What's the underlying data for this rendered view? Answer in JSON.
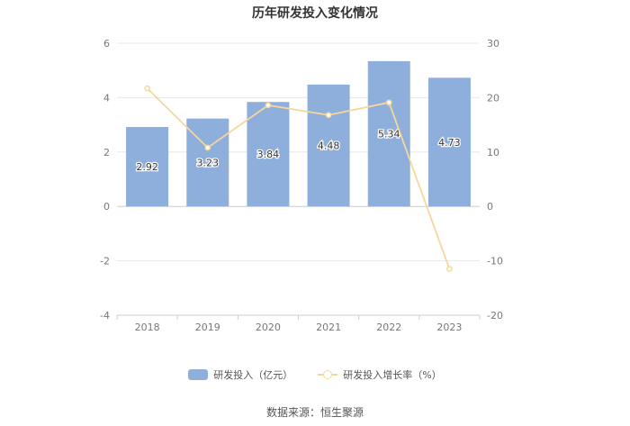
{
  "chart_data": {
    "type": "bar",
    "title": "历年研发投入变化情况",
    "categories": [
      "2018",
      "2019",
      "2020",
      "2021",
      "2022",
      "2023"
    ],
    "series": [
      {
        "name": "研发投入（亿元）",
        "type": "bar",
        "axis": "left",
        "color": "#8eaedb",
        "values": [
          2.92,
          3.23,
          3.84,
          4.48,
          5.34,
          4.73
        ],
        "labels": [
          "2.92",
          "3.23",
          "3.84",
          "4.48",
          "5.34",
          "4.73"
        ]
      },
      {
        "name": "研发投入增长率（%）",
        "type": "line",
        "axis": "right",
        "color": "#f6d79b",
        "values": [
          21.7,
          10.8,
          18.6,
          16.8,
          19.1,
          -11.5
        ]
      }
    ],
    "y_left": {
      "range": [
        -4,
        6
      ],
      "ticks": [
        "6",
        "4",
        "2",
        "0",
        "-2",
        "-4"
      ]
    },
    "y_right": {
      "range": [
        -20,
        30
      ],
      "ticks": [
        "30",
        "20",
        "10",
        "0",
        "-10",
        "-20"
      ]
    },
    "grid": true,
    "legend_position": "bottom"
  },
  "source": "数据来源：恒生聚源"
}
